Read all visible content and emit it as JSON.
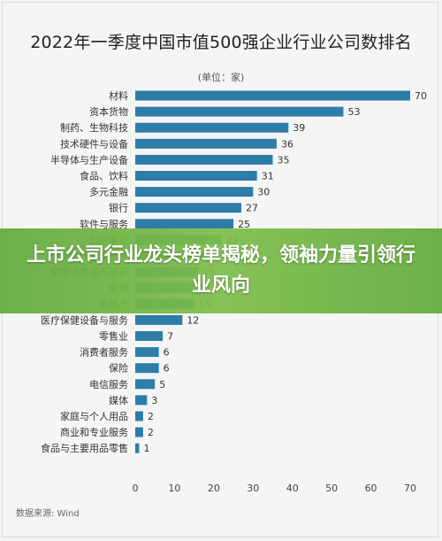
{
  "source": "数据来源: Wind",
  "overlay": {
    "headline": "上市公司行业龙头榜单揭秘，领袖力量引领行业风向"
  },
  "colors": {
    "bar": "#2e7ca8",
    "banner": "#6fb345",
    "text": "#333333"
  },
  "chart_data": {
    "type": "bar",
    "orientation": "horizontal",
    "title": "2022年一季度中国市值500强企业行业公司数排名",
    "unit_label": "(单位：家)",
    "categories": [
      "材料",
      "资本货物",
      "制药、生物科技",
      "技术硬件与设备",
      "半导体与生产设备",
      "食品、饮料",
      "多元金融",
      "银行",
      "软件与服务",
      "公用事业",
      "汽车与汽车零部件",
      "耐用消费品与服装",
      "能源",
      "房地产",
      "医疗保健设备与服务",
      "零售业",
      "消费者服务",
      "保险",
      "电信服务",
      "媒体",
      "家庭与个人用品",
      "商业和专业服务",
      "食品与主要用品零售"
    ],
    "values": [
      70,
      53,
      39,
      36,
      35,
      31,
      30,
      27,
      25,
      22,
      18,
      16,
      15,
      15,
      12,
      7,
      6,
      6,
      5,
      3,
      2,
      2,
      1
    ],
    "xlim": [
      0,
      70
    ],
    "xticks": [
      "0",
      "10",
      "20",
      "30",
      "40",
      "50",
      "60",
      "70"
    ],
    "grid": false,
    "legend": "none"
  }
}
